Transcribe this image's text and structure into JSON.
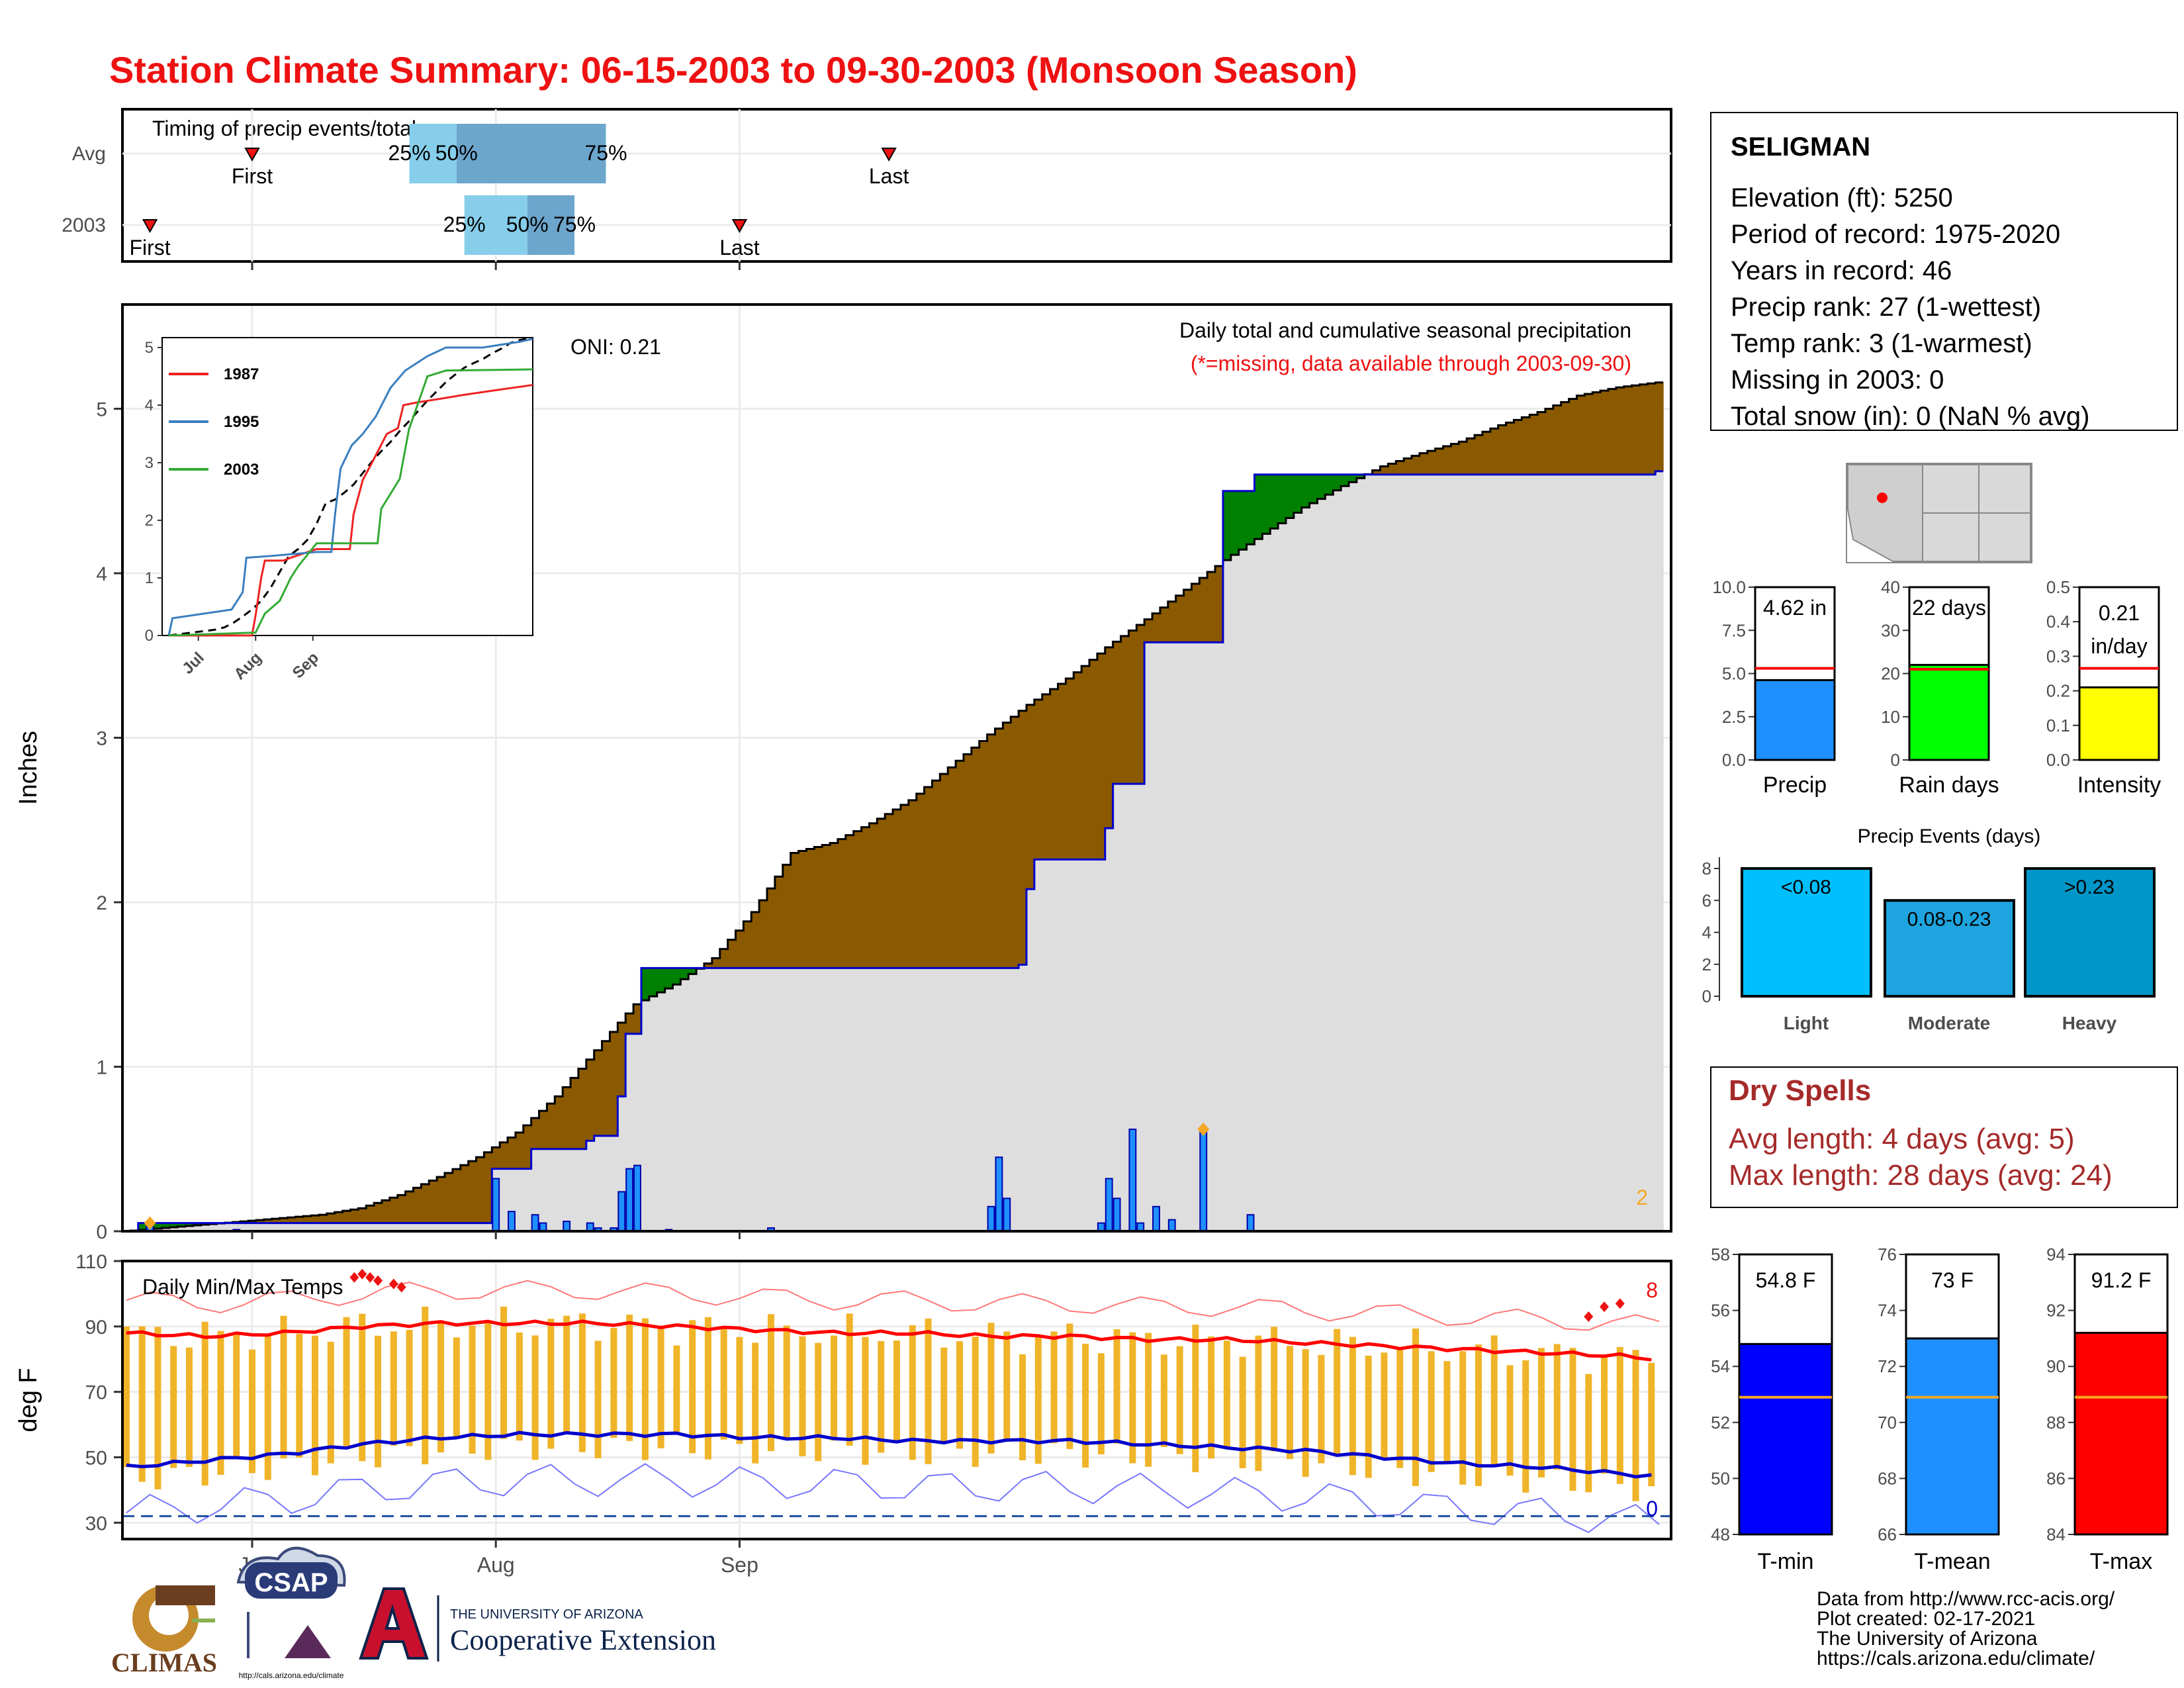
{
  "title": "Station Climate Summary: 06-15-2003 to 09-30-2003 (Monsoon Season)",
  "colors": {
    "title": "#ee1111",
    "avg_fill": "#8b5a00",
    "above_fill": "#008000",
    "cum_line": "#0000cc",
    "bar": "#1e90ff",
    "temp_bar": "#f0b429",
    "tmax": "#ff0000",
    "tmin": "#0000cc",
    "timing_light": "#87ceeb",
    "timing_dark": "#6ca6cd",
    "dry_spell": "#a52a2a"
  },
  "timing": {
    "title": "Timing of precip events/totals",
    "rows": [
      {
        "label": "Avg",
        "first": "07-01",
        "q25": "07-21",
        "q50": "07-27",
        "q75": "08-15",
        "last": "09-20",
        "first_label": "First",
        "q25_label": "25%",
        "q50_label": "50%",
        "q75_label": "75%",
        "last_label": "Last"
      },
      {
        "label": "2003",
        "first": "06-18",
        "q25": "07-28",
        "q50": "08-05",
        "q75": "08-11",
        "last": "09-01",
        "first_label": "First",
        "q25_label": "25%",
        "q50_label": "50%",
        "q75_label": "75%",
        "last_label": "Last"
      }
    ]
  },
  "precip_panel": {
    "ylabel": "Inches",
    "oni": "ONI: 0.21",
    "header": "Daily total and cumulative seasonal precipitation",
    "note": "(*=missing, data available through 2003-09-30)",
    "corner_count": "2",
    "yticks": [
      "0",
      "1",
      "2",
      "3",
      "4",
      "5"
    ]
  },
  "inset": {
    "legend": [
      {
        "name": "1987",
        "color": "#ee2222"
      },
      {
        "name": "1995",
        "color": "#3a7fc0"
      },
      {
        "name": "2003",
        "color": "#33aa33"
      }
    ],
    "yticks": [
      "0",
      "1",
      "2",
      "3",
      "4",
      "5"
    ],
    "xticks": [
      "Jul",
      "Aug",
      "Sep"
    ]
  },
  "temp_panel": {
    "title": "Daily Min/Max Temps",
    "ylabel": "deg F",
    "yticks": [
      "30",
      "50",
      "70",
      "90",
      "110"
    ],
    "count_hot": "8",
    "count_cold": "0"
  },
  "xaxis": {
    "ticks": [
      "Jul",
      "Aug",
      "Sep"
    ]
  },
  "station": {
    "name": "SELIGMAN",
    "lines": [
      "Elevation (ft): 5250",
      "Period of record: 1975-2020",
      "Years in record: 46",
      "Precip rank: 27 (1-wettest)",
      "Temp rank: 3 (1-warmest)",
      "Missing in 2003: 0",
      "Total snow (in): 0 (NaN % avg)"
    ]
  },
  "gauges": [
    {
      "label": "Precip",
      "value_text": "4.62 in",
      "value": 4.62,
      "avg": 5.3,
      "max": 10.0,
      "color": "#1e90ff",
      "ticks": [
        "0.0",
        "2.5",
        "5.0",
        "7.5",
        "10.0"
      ]
    },
    {
      "label": "Rain days",
      "value_text": "22 days",
      "value": 22,
      "avg": 21,
      "max": 40,
      "color": "#00ff00",
      "ticks": [
        "0",
        "10",
        "20",
        "30",
        "40"
      ]
    },
    {
      "label": "Intensity",
      "value_text": "0.21 in/day",
      "value": 0.21,
      "avg": 0.265,
      "max": 0.5,
      "color": "#ffff00",
      "ticks": [
        "0.0",
        "0.1",
        "0.2",
        "0.3",
        "0.4",
        "0.5"
      ]
    }
  ],
  "events": {
    "title": "Precip Events (days)",
    "yticks": [
      "0",
      "2",
      "4",
      "6",
      "8"
    ],
    "bars": [
      {
        "label": "Light",
        "range": "<0.08",
        "value": 8,
        "color": "#00bfff"
      },
      {
        "label": "Moderate",
        "range": "0.08-0.23",
        "value": 6,
        "color": "#1ea4de"
      },
      {
        "label": "Heavy",
        "range": ">0.23",
        "value": 8,
        "color": "#0096c8"
      }
    ]
  },
  "dry_spells": {
    "title": "Dry Spells",
    "avg": "Avg length: 4 days (avg: 5)",
    "max": "Max length: 28 days (avg: 24)"
  },
  "temp_gauges": [
    {
      "label": "T-min",
      "value_text": "54.8 F",
      "value": 54.8,
      "avg": 52.9,
      "min": 48,
      "max": 58,
      "color": "#0000ff",
      "ticks": [
        "48",
        "50",
        "52",
        "54",
        "56",
        "58"
      ]
    },
    {
      "label": "T-mean",
      "value_text": "73 F",
      "value": 73.0,
      "avg": 70.9,
      "min": 66,
      "max": 76,
      "color": "#1e90ff",
      "ticks": [
        "66",
        "68",
        "70",
        "72",
        "74",
        "76"
      ]
    },
    {
      "label": "T-max",
      "value_text": "91.2 F",
      "value": 91.2,
      "avg": 88.9,
      "min": 84,
      "max": 94,
      "color": "#ff0000",
      "ticks": [
        "84",
        "86",
        "88",
        "90",
        "92",
        "94"
      ]
    }
  ],
  "footer": {
    "credits": [
      "Data from http://www.rcc-acis.org/",
      "Plot created: 02-17-2021",
      "The University of Arizona",
      "https://cals.arizona.edu/climate/"
    ],
    "logo_climas": "CLIMAS",
    "logo_csap": "CSAP",
    "csap_url": "http://cals.arizona.edu/climate",
    "ua_small": "THE UNIVERSITY OF ARIZONA",
    "ua_big": "Cooperative Extension"
  },
  "chart_data": [
    {
      "type": "area",
      "title": "Daily total and cumulative seasonal precipitation",
      "ylabel": "Inches",
      "x_range": [
        "06-15",
        "09-30"
      ],
      "ylim": [
        0,
        5.6
      ],
      "avg_cumulative": [
        [
          0,
          0
        ],
        [
          5,
          0.02
        ],
        [
          10,
          0.04
        ],
        [
          15,
          0.06
        ],
        [
          20,
          0.08
        ],
        [
          25,
          0.1
        ],
        [
          30,
          0.14
        ],
        [
          35,
          0.22
        ],
        [
          40,
          0.33
        ],
        [
          45,
          0.45
        ],
        [
          50,
          0.6
        ],
        [
          55,
          0.82
        ],
        [
          60,
          1.1
        ],
        [
          65,
          1.38
        ],
        [
          70,
          1.5
        ],
        [
          75,
          1.66
        ],
        [
          80,
          1.94
        ],
        [
          85,
          2.3
        ],
        [
          90,
          2.36
        ],
        [
          95,
          2.48
        ],
        [
          100,
          2.62
        ],
        [
          105,
          2.82
        ],
        [
          110,
          3.02
        ],
        [
          115,
          3.2
        ],
        [
          120,
          3.36
        ],
        [
          125,
          3.55
        ],
        [
          130,
          3.72
        ],
        [
          135,
          3.9
        ],
        [
          140,
          4.08
        ],
        [
          145,
          4.24
        ],
        [
          150,
          4.4
        ],
        [
          155,
          4.53
        ],
        [
          160,
          4.65
        ],
        [
          165,
          4.73
        ],
        [
          170,
          4.8
        ],
        [
          175,
          4.9
        ],
        [
          180,
          4.98
        ],
        [
          185,
          5.08
        ],
        [
          190,
          5.13
        ],
        [
          195,
          5.16
        ]
      ],
      "cumulative_2003": [
        [
          0,
          0
        ],
        [
          2,
          0.05
        ],
        [
          3,
          0.05
        ],
        [
          14,
          0.05
        ],
        [
          15,
          0.05
        ],
        [
          27,
          0.05
        ],
        [
          28,
          0.05
        ],
        [
          34,
          0.05
        ],
        [
          35,
          0.05
        ],
        [
          36,
          0.05
        ],
        [
          44,
          0.05
        ],
        [
          45,
          0.05
        ],
        [
          47,
          0.38
        ],
        [
          48,
          0.38
        ],
        [
          49,
          0.38
        ],
        [
          50,
          0.38
        ],
        [
          52,
          0.5
        ],
        [
          53,
          0.5
        ],
        [
          54,
          0.5
        ],
        [
          55,
          0.5
        ],
        [
          56,
          0.5
        ],
        [
          57,
          0.5
        ],
        [
          58,
          0.5
        ],
        [
          59,
          0.55
        ],
        [
          60,
          0.58
        ],
        [
          61,
          0.58
        ],
        [
          62,
          0.58
        ],
        [
          63,
          0.82
        ],
        [
          64,
          1.2
        ],
        [
          65,
          1.2
        ],
        [
          66,
          1.6
        ],
        [
          67,
          1.6
        ],
        [
          68,
          1.6
        ],
        [
          69,
          1.6
        ],
        [
          70,
          1.6
        ],
        [
          71,
          1.6
        ],
        [
          72,
          1.6
        ],
        [
          73,
          1.6
        ],
        [
          74,
          1.6
        ],
        [
          75,
          1.6
        ],
        [
          76,
          1.6
        ],
        [
          77,
          1.6
        ],
        [
          78,
          1.6
        ],
        [
          79,
          1.6
        ],
        [
          80,
          1.6
        ],
        [
          81,
          1.6
        ],
        [
          82,
          1.6
        ],
        [
          83,
          1.6
        ],
        [
          84,
          1.6
        ],
        [
          85,
          1.6
        ],
        [
          86,
          1.6
        ],
        [
          87,
          1.6
        ],
        [
          88,
          1.6
        ],
        [
          89,
          1.6
        ],
        [
          90,
          1.6
        ],
        [
          91,
          1.6
        ],
        [
          92,
          1.6
        ],
        [
          93,
          1.6
        ],
        [
          94,
          1.6
        ],
        [
          95,
          1.6
        ],
        [
          96,
          1.6
        ],
        [
          97,
          1.6
        ],
        [
          98,
          1.6
        ],
        [
          99,
          1.6
        ],
        [
          100,
          1.6
        ],
        [
          101,
          1.6
        ],
        [
          102,
          1.6
        ],
        [
          103,
          1.6
        ],
        [
          104,
          1.6
        ],
        [
          105,
          1.6
        ],
        [
          106,
          1.6
        ],
        [
          107,
          1.6
        ],
        [
          108,
          1.6
        ],
        [
          109,
          1.6
        ],
        [
          110,
          1.6
        ],
        [
          111,
          1.6
        ],
        [
          112,
          1.6
        ],
        [
          113,
          1.6
        ],
        [
          114,
          1.62
        ],
        [
          115,
          2.08
        ],
        [
          116,
          2.26
        ],
        [
          117,
          2.26
        ],
        [
          118,
          2.26
        ],
        [
          119,
          2.26
        ],
        [
          120,
          2.26
        ],
        [
          121,
          2.26
        ],
        [
          122,
          2.26
        ],
        [
          123,
          2.26
        ],
        [
          124,
          2.26
        ],
        [
          125,
          2.45
        ],
        [
          126,
          2.72
        ],
        [
          127,
          2.72
        ],
        [
          128,
          2.72
        ],
        [
          129,
          2.72
        ],
        [
          130,
          3.58
        ],
        [
          131,
          3.58
        ],
        [
          132,
          3.58
        ],
        [
          133,
          3.58
        ],
        [
          134,
          3.58
        ],
        [
          135,
          3.58
        ],
        [
          136,
          3.58
        ],
        [
          137,
          3.58
        ],
        [
          138,
          3.58
        ],
        [
          139,
          3.58
        ],
        [
          140,
          4.5
        ],
        [
          141,
          4.5
        ],
        [
          142,
          4.5
        ],
        [
          143,
          4.5
        ],
        [
          144,
          4.6
        ],
        [
          145,
          4.6
        ],
        [
          146,
          4.6
        ],
        [
          147,
          4.6
        ],
        [
          148,
          4.6
        ],
        [
          149,
          4.6
        ],
        [
          150,
          4.6
        ],
        [
          151,
          4.6
        ],
        [
          152,
          4.6
        ],
        [
          153,
          4.6
        ],
        [
          154,
          4.6
        ],
        [
          155,
          4.6
        ],
        [
          156,
          4.6
        ],
        [
          157,
          4.6
        ],
        [
          158,
          4.6
        ],
        [
          159,
          4.6
        ],
        [
          160,
          4.6
        ],
        [
          161,
          4.6
        ],
        [
          162,
          4.6
        ],
        [
          163,
          4.6
        ],
        [
          164,
          4.6
        ],
        [
          165,
          4.6
        ],
        [
          166,
          4.6
        ],
        [
          167,
          4.6
        ],
        [
          168,
          4.6
        ],
        [
          169,
          4.6
        ],
        [
          170,
          4.6
        ],
        [
          171,
          4.6
        ],
        [
          172,
          4.6
        ],
        [
          173,
          4.6
        ],
        [
          174,
          4.6
        ],
        [
          175,
          4.6
        ],
        [
          176,
          4.6
        ],
        [
          177,
          4.6
        ],
        [
          178,
          4.6
        ],
        [
          179,
          4.6
        ],
        [
          180,
          4.6
        ],
        [
          181,
          4.6
        ],
        [
          182,
          4.6
        ],
        [
          183,
          4.6
        ],
        [
          184,
          4.6
        ],
        [
          185,
          4.6
        ],
        [
          186,
          4.6
        ],
        [
          187,
          4.6
        ],
        [
          188,
          4.6
        ],
        [
          189,
          4.6
        ],
        [
          190,
          4.6
        ],
        [
          191,
          4.6
        ],
        [
          192,
          4.6
        ],
        [
          193,
          4.6
        ],
        [
          194,
          4.6
        ],
        [
          195,
          4.62
        ]
      ],
      "daily_2003": [
        [
          3,
          0.05
        ],
        [
          14,
          0.01
        ],
        [
          47,
          0.32
        ],
        [
          49,
          0.12
        ],
        [
          52,
          0.1
        ],
        [
          53,
          0.05
        ],
        [
          56,
          0.06
        ],
        [
          59,
          0.05
        ],
        [
          60,
          0.02
        ],
        [
          62,
          0.02
        ],
        [
          63,
          0.24
        ],
        [
          64,
          0.38
        ],
        [
          65,
          0.4
        ],
        [
          69,
          0.01
        ],
        [
          82,
          0.02
        ],
        [
          110,
          0.15
        ],
        [
          111,
          0.45
        ],
        [
          112,
          0.2
        ],
        [
          124,
          0.05
        ],
        [
          125,
          0.32
        ],
        [
          126,
          0.2
        ],
        [
          128,
          0.62
        ],
        [
          129,
          0.05
        ],
        [
          131,
          0.15
        ],
        [
          133,
          0.07
        ],
        [
          137,
          0.62
        ],
        [
          143,
          0.1
        ]
      ]
    },
    {
      "type": "bar",
      "title": "Daily Min/Max Temps",
      "ylabel": "deg F",
      "ylim": [
        25,
        110
      ],
      "tmax_avg": [
        [
          0,
          88
        ],
        [
          10,
          87
        ],
        [
          20,
          88
        ],
        [
          30,
          90
        ],
        [
          40,
          91
        ],
        [
          50,
          91
        ],
        [
          60,
          91
        ],
        [
          70,
          90
        ],
        [
          80,
          89
        ],
        [
          90,
          88
        ],
        [
          100,
          88
        ],
        [
          110,
          87
        ],
        [
          120,
          87
        ],
        [
          130,
          86
        ],
        [
          140,
          86
        ],
        [
          150,
          85
        ],
        [
          160,
          84
        ],
        [
          170,
          83
        ],
        [
          180,
          82
        ],
        [
          190,
          81
        ],
        [
          195,
          80
        ]
      ],
      "tmin_avg": [
        [
          0,
          47
        ],
        [
          10,
          49
        ],
        [
          20,
          51
        ],
        [
          30,
          54
        ],
        [
          40,
          56
        ],
        [
          50,
          57
        ],
        [
          60,
          57
        ],
        [
          70,
          57
        ],
        [
          80,
          56
        ],
        [
          90,
          56
        ],
        [
          100,
          55
        ],
        [
          110,
          55
        ],
        [
          120,
          55
        ],
        [
          130,
          54
        ],
        [
          140,
          53
        ],
        [
          150,
          52
        ],
        [
          160,
          50
        ],
        [
          170,
          48
        ],
        [
          180,
          47
        ],
        [
          190,
          45
        ],
        [
          195,
          44
        ]
      ]
    },
    {
      "type": "bar",
      "title": "Precip Events (days)",
      "categories": [
        "Light",
        "Moderate",
        "Heavy"
      ],
      "values": [
        8,
        6,
        8
      ]
    }
  ]
}
